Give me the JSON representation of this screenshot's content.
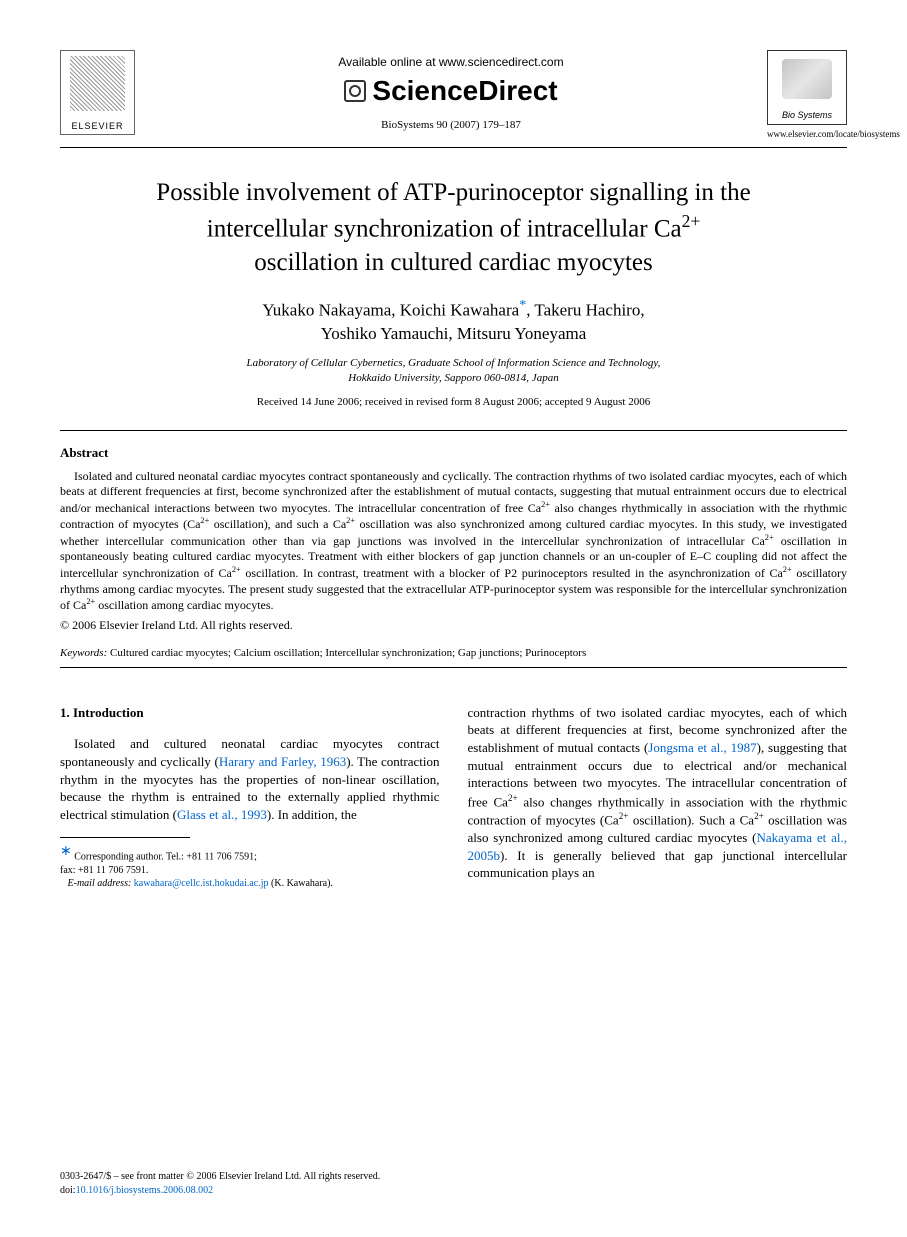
{
  "header": {
    "elsevier": "ELSEVIER",
    "available": "Available online at www.sciencedirect.com",
    "sciencedirect": "ScienceDirect",
    "citation": "BioSystems 90 (2007) 179–187",
    "journal_name": "Bio Systems",
    "journal_url": "www.elsevier.com/locate/biosystems"
  },
  "title": {
    "line1": "Possible involvement of ATP-purinoceptor signalling in the",
    "line2_pre": "intercellular synchronization of intracellular Ca",
    "line2_sup": "2+",
    "line3": "oscillation in cultured cardiac myocytes"
  },
  "authors": {
    "line1_a": "Yukako Nakayama, Koichi Kawahara",
    "line1_b": ", Takeru Hachiro,",
    "line2": "Yoshiko Yamauchi, Mitsuru Yoneyama"
  },
  "affiliation": {
    "line1": "Laboratory of Cellular Cybernetics, Graduate School of Information Science and Technology,",
    "line2": "Hokkaido University, Sapporo 060-0814, Japan"
  },
  "dates": "Received 14 June 2006; received in revised form 8 August 2006; accepted 9 August 2006",
  "abstract": {
    "heading": "Abstract",
    "p1a": "Isolated and cultured neonatal cardiac myocytes contract spontaneously and cyclically. The contraction rhythms of two isolated cardiac myocytes, each of which beats at different frequencies at first, become synchronized after the establishment of mutual contacts, suggesting that mutual entrainment occurs due to electrical and/or mechanical interactions between two myocytes. The intracellular concentration of free Ca",
    "p1b": " also changes rhythmically in association with the rhythmic contraction of myocytes (Ca",
    "p1c": " oscillation), and such a Ca",
    "p1d": " oscillation was also synchronized among cultured cardiac myocytes. In this study, we investigated whether intercellular communication other than via gap junctions was involved in the intercellular synchronization of intracellular Ca",
    "p1e": " oscillation in spontaneously beating cultured cardiac myocytes. Treatment with either blockers of gap junction channels or an un-coupler of E–C coupling did not affect the intercellular synchronization of Ca",
    "p1f": " oscillation. In contrast, treatment with a blocker of P2 purinoceptors resulted in the asynchronization of Ca",
    "p1g": " oscillatory rhythms among cardiac myocytes. The present study suggested that the extracellular ATP-purinoceptor system was responsible for the intercellular synchronization of Ca",
    "p1h": " oscillation among cardiac myocytes.",
    "copyright": "© 2006 Elsevier Ireland Ltd. All rights reserved.",
    "kw_label": "Keywords:",
    "kw_text": "  Cultured cardiac myocytes; Calcium oscillation; Intercellular synchronization; Gap junctions; Purinoceptors"
  },
  "intro": {
    "heading": "1.  Introduction",
    "col1_a": "Isolated and cultured neonatal cardiac myocytes contract spontaneously and cyclically (",
    "cite1": "Harary and Farley, 1963",
    "col1_b": "). The contraction rhythm in the myocytes has the properties of non-linear oscillation, because the rhythm is entrained to the externally applied rhythmic electrical stimulation (",
    "cite2": "Glass et al., 1993",
    "col1_c": "). In addition, the",
    "col2_a": "contraction rhythms of two isolated cardiac myocytes, each of which beats at different frequencies at first, become synchronized after the establishment of mutual contacts (",
    "cite3": "Jongsma et al., 1987",
    "col2_b": "), suggesting that mutual entrainment occurs due to electrical and/or mechanical interactions between two myocytes. The intracellular concentration of free Ca",
    "col2_c": " also changes rhythmically in association with the rhythmic contraction of myocytes (Ca",
    "col2_d": " oscillation). Such a Ca",
    "col2_e": " oscillation was also synchronized among cultured cardiac myocytes (",
    "cite4": "Nakayama et al., 2005b",
    "col2_f": "). It is generally believed that gap junctional intercellular communication plays an"
  },
  "footnote": {
    "corr": "Corresponding author. Tel.: +81 11 706 7591;",
    "fax": "fax: +81 11 706 7591.",
    "email_label": "E-mail address:",
    "email": "kawahara@cellc.ist.hokudai.ac.jp",
    "email_suffix": " (K. Kawahara)."
  },
  "footer": {
    "line1": "0303-2647/$ – see front matter © 2006 Elsevier Ireland Ltd. All rights reserved.",
    "doi_label": "doi:",
    "doi": "10.1016/j.biosystems.2006.08.002"
  },
  "sup2plus": "2+"
}
